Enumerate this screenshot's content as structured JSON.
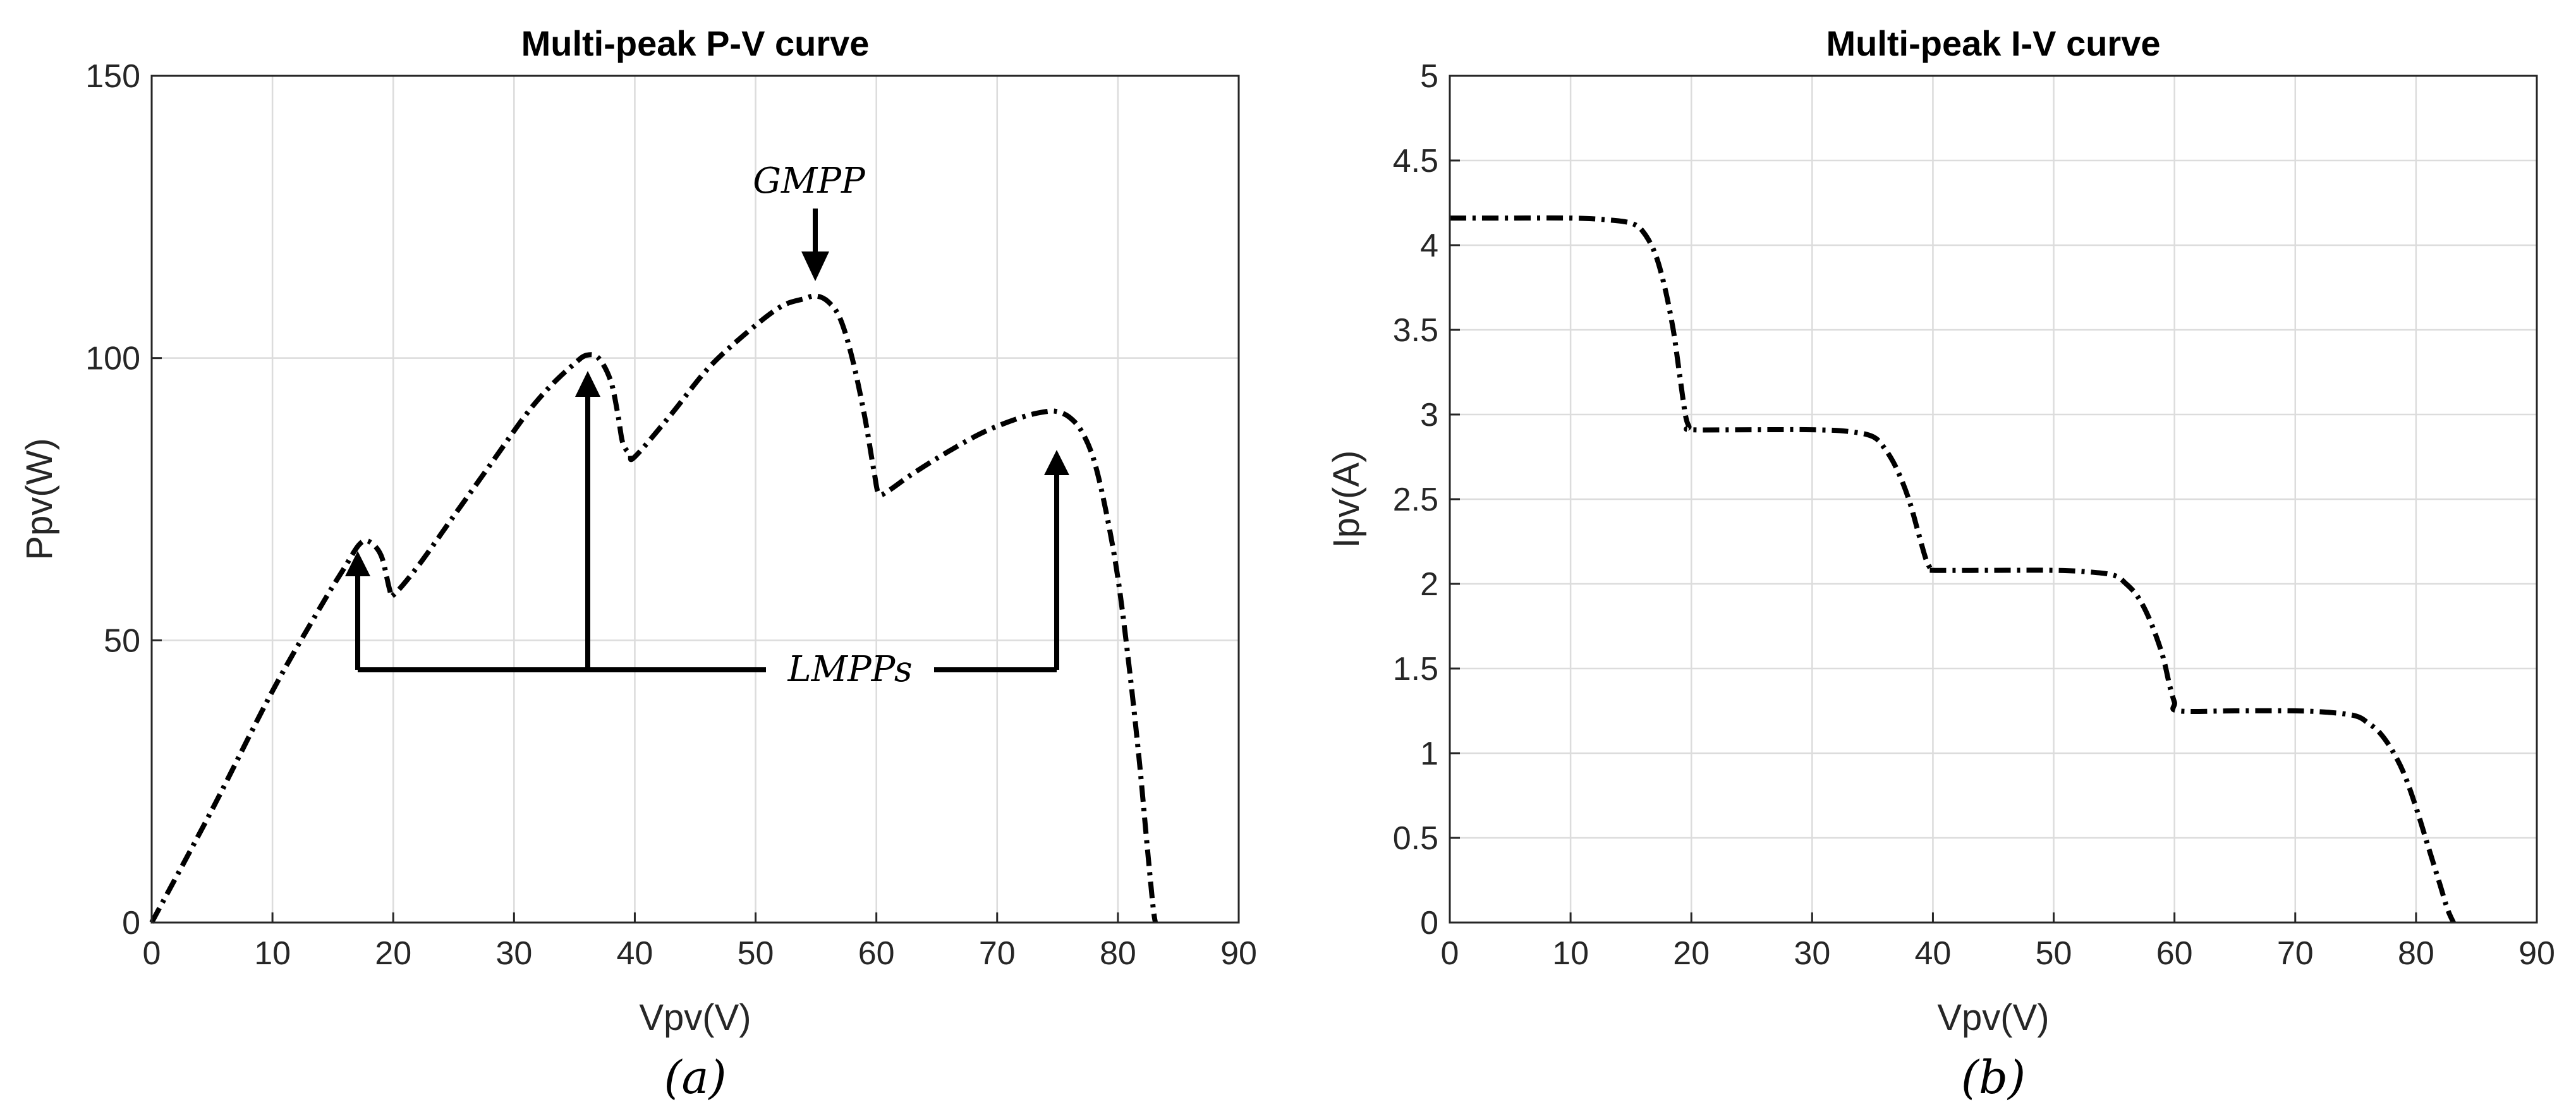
{
  "chart_data": [
    {
      "type": "line",
      "id": "pv",
      "title": "Multi-peak P-V curve",
      "xlabel": "Vpv(V)",
      "ylabel": "Ppv(W)",
      "caption": "(a)",
      "xlim": [
        0,
        90
      ],
      "ylim": [
        0,
        150
      ],
      "xticks": [
        0,
        10,
        20,
        30,
        40,
        50,
        60,
        70,
        80,
        90
      ],
      "yticks": [
        0,
        50,
        100,
        150
      ],
      "grid": true,
      "series": [
        {
          "name": "P-V",
          "style": "dash-dot",
          "color": "#000000",
          "x": [
            0,
            5,
            10,
            14,
            16,
            17.2,
            18,
            19,
            19.7,
            20,
            22,
            25,
            28,
            31,
            33,
            35,
            36,
            37,
            38,
            38.6,
            39,
            39.6,
            40,
            43,
            46,
            49,
            52,
            54,
            55,
            56,
            57,
            58,
            59,
            59.8,
            60.2,
            61,
            63,
            66,
            69,
            72,
            74,
            75,
            76,
            77,
            78,
            79,
            80,
            81,
            81.8,
            82.4,
            82.9,
            83.1
          ],
          "y": [
            0,
            20,
            41,
            56,
            63,
            67,
            67.5,
            65,
            59,
            58,
            63,
            72,
            81,
            90,
            95,
            99,
            100.5,
            100,
            96,
            90,
            85,
            83,
            82.5,
            90,
            98,
            104,
            109,
            110.5,
            111,
            110,
            107,
            100,
            90,
            80,
            76,
            76.5,
            79.5,
            83.5,
            87,
            89.5,
            90.5,
            90.5,
            89.5,
            87,
            82,
            73,
            61,
            44,
            28,
            14,
            3,
            0
          ]
        }
      ],
      "annotations": [
        {
          "text": "GMPP",
          "points_to": [
            55,
            111
          ]
        },
        {
          "text": "LMPPs",
          "points_to": [
            [
              17.5,
              64
            ],
            [
              36,
              98
            ],
            [
              74,
              84
            ]
          ],
          "baseline_y": 44
        }
      ]
    },
    {
      "type": "line",
      "id": "iv",
      "title": "Multi-peak I-V curve",
      "xlabel": "Vpv(V)",
      "ylabel": "Ipv(A)",
      "caption": "(b)",
      "xlim": [
        0,
        90
      ],
      "ylim": [
        0,
        5
      ],
      "xticks": [
        0,
        10,
        20,
        30,
        40,
        50,
        60,
        70,
        80,
        90
      ],
      "yticks": [
        0,
        0.5,
        1,
        1.5,
        2,
        2.5,
        3,
        3.5,
        4,
        4.5,
        5
      ],
      "grid": true,
      "series": [
        {
          "name": "I-V",
          "style": "dash-dot",
          "color": "#000000",
          "x": [
            0,
            5,
            10,
            13,
            15,
            16,
            17,
            17.8,
            18.5,
            19,
            19.5,
            19.8,
            20,
            25,
            30,
            33,
            35,
            36,
            37,
            38,
            38.8,
            39.4,
            39.8,
            40,
            45,
            50,
            53,
            55,
            56,
            57,
            58,
            59,
            59.6,
            60,
            60.3,
            65,
            70,
            73,
            75,
            76,
            77,
            78,
            79,
            80,
            81,
            82,
            82.6,
            83.1
          ],
          "y": [
            4.16,
            4.16,
            4.16,
            4.15,
            4.13,
            4.08,
            3.95,
            3.75,
            3.5,
            3.25,
            3.0,
            2.93,
            2.91,
            2.91,
            2.91,
            2.9,
            2.87,
            2.8,
            2.68,
            2.5,
            2.3,
            2.15,
            2.09,
            2.08,
            2.08,
            2.08,
            2.07,
            2.05,
            2.0,
            1.92,
            1.78,
            1.58,
            1.4,
            1.3,
            1.25,
            1.25,
            1.25,
            1.24,
            1.22,
            1.18,
            1.12,
            1.02,
            0.88,
            0.68,
            0.45,
            0.22,
            0.08,
            0
          ]
        }
      ]
    }
  ]
}
